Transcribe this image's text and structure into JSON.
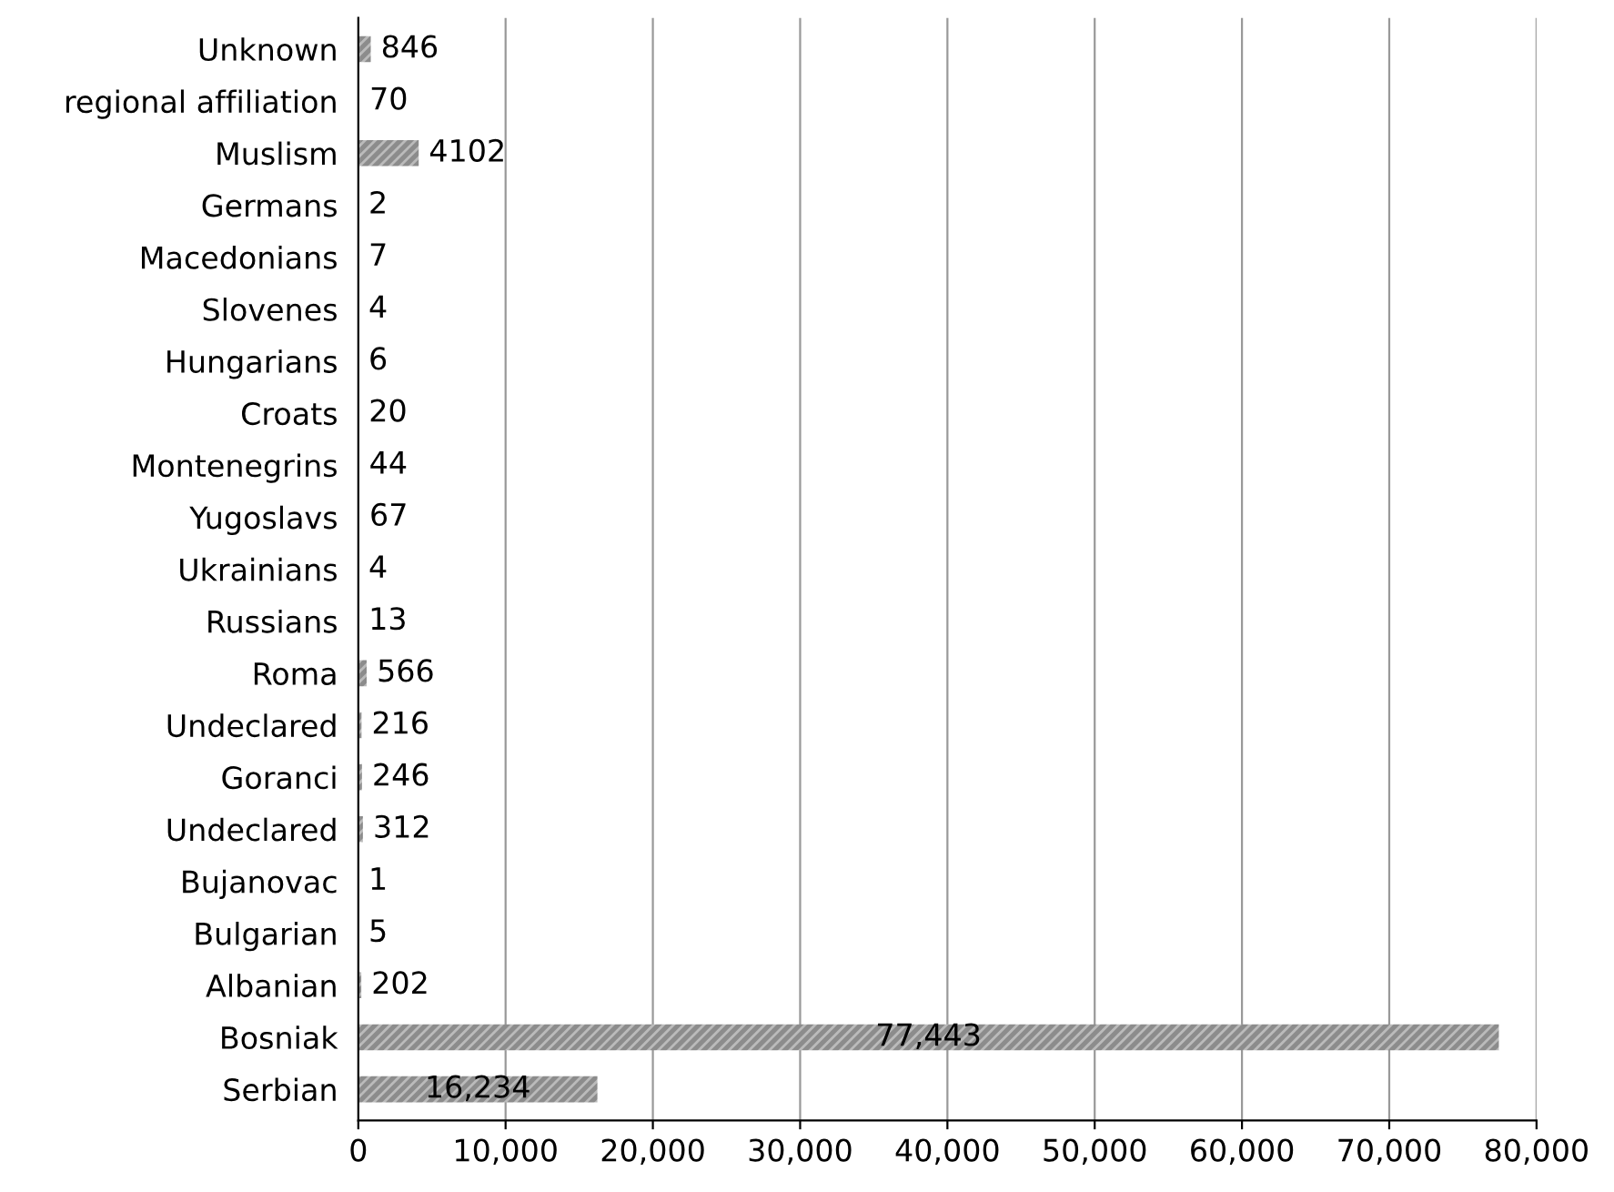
{
  "chart_data": {
    "type": "bar",
    "orientation": "horizontal",
    "categories": [
      "Unknown",
      "regional affiliation",
      "Muslism",
      "Germans",
      "Macedonians",
      "Slovenes",
      "Hungarians",
      "Croats",
      "Montenegrins",
      "Yugoslavs",
      "Ukrainians",
      "Russians",
      "Roma",
      "Undeclared",
      "Goranci",
      "Undeclared",
      "Bujanovac",
      "Bulgarian",
      "Albanian",
      "Bosniak",
      "Serbian"
    ],
    "values": [
      846,
      70,
      4102,
      2,
      7,
      4,
      6,
      20,
      44,
      67,
      4,
      13,
      566,
      216,
      246,
      312,
      1,
      5,
      202,
      77443,
      16234
    ],
    "value_labels": [
      "846",
      "70",
      "4102",
      "2",
      "7",
      "4",
      "6",
      "20",
      "44",
      "67",
      "4",
      "13",
      "566",
      "216",
      "246",
      "312",
      "1",
      "5",
      "202",
      "77,443",
      "16,234"
    ],
    "color": "#8c8c8c",
    "xlim": [
      0,
      80000
    ],
    "xticks": [
      {
        "value": 0,
        "label": "0"
      },
      {
        "value": 10000,
        "label": "10,000"
      },
      {
        "value": 20000,
        "label": "20,000"
      },
      {
        "value": 30000,
        "label": "30,000"
      },
      {
        "value": 40000,
        "label": "40,000"
      },
      {
        "value": 50000,
        "label": "50,000"
      },
      {
        "value": 60000,
        "label": "60,000"
      },
      {
        "value": 70000,
        "label": "70,000"
      },
      {
        "value": 80000,
        "label": "80,000"
      }
    ],
    "grid": "x",
    "legend": false
  }
}
